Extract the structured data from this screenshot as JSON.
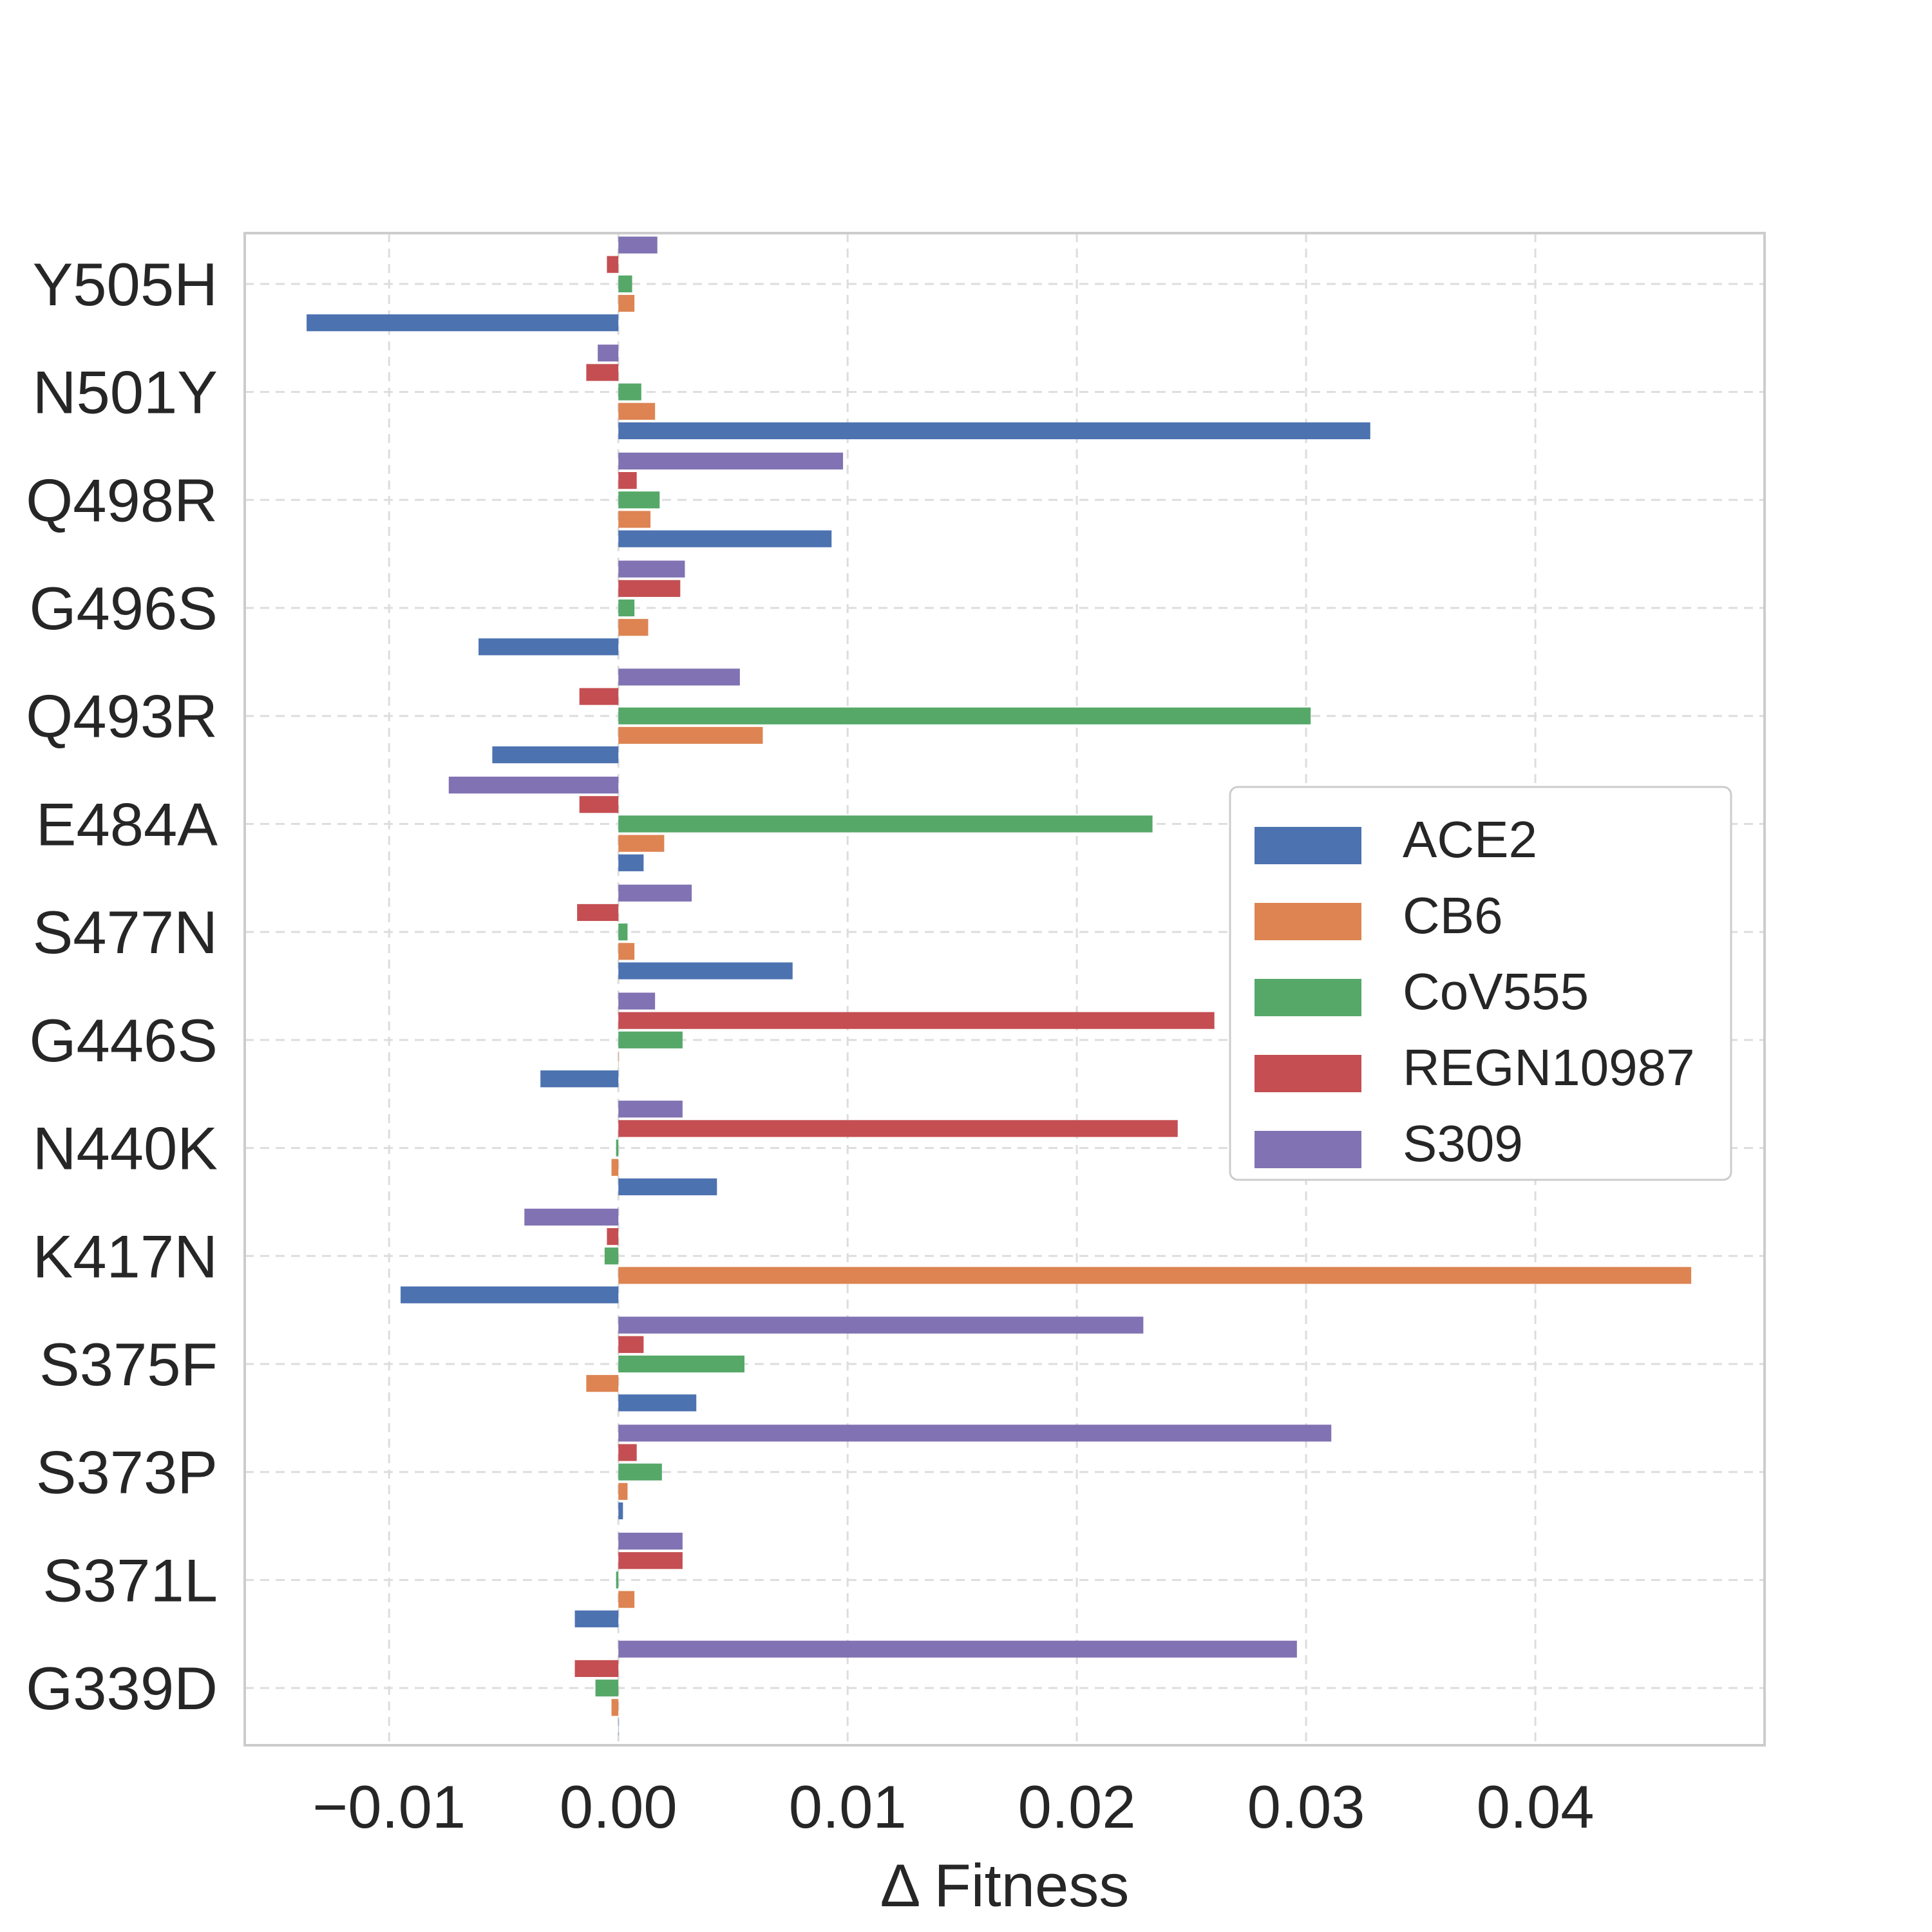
{
  "chart_data": {
    "type": "bar",
    "orientation": "horizontal",
    "title": "",
    "xlabel": "Δ Fitness",
    "ylabel": "",
    "xlim": [
      -0.0163,
      0.05
    ],
    "xticks": [
      -0.01,
      0.0,
      0.01,
      0.02,
      0.03,
      0.04
    ],
    "xtick_labels": [
      "−0.01",
      "0.00",
      "0.01",
      "0.02",
      "0.03",
      "0.04"
    ],
    "grid": true,
    "legend_position": "center-right",
    "categories": [
      "Y505H",
      "N501Y",
      "Q498R",
      "G496S",
      "Q493R",
      "E484A",
      "S477N",
      "G446S",
      "N440K",
      "K417N",
      "S375F",
      "S373P",
      "S371L",
      "G339D"
    ],
    "series": [
      {
        "name": "ACE2",
        "color": "#4c72b0",
        "values": [
          -0.0136,
          0.0328,
          0.0093,
          -0.0061,
          -0.0055,
          0.0011,
          0.0076,
          -0.0034,
          0.0043,
          -0.0095,
          0.0034,
          0.0002,
          -0.0019,
          0.0
        ]
      },
      {
        "name": "CB6",
        "color": "#dd8452",
        "values": [
          0.0007,
          0.0016,
          0.0014,
          0.0013,
          0.0063,
          0.002,
          0.0007,
          0.0,
          -0.0003,
          0.0468,
          -0.0014,
          0.0004,
          0.0007,
          -0.0003
        ]
      },
      {
        "name": "CoV555",
        "color": "#55a868",
        "values": [
          0.0006,
          0.001,
          0.0018,
          0.0007,
          0.0302,
          0.0233,
          0.0004,
          0.0028,
          -0.0001,
          -0.0006,
          0.0055,
          0.0019,
          -0.0001,
          -0.001
        ]
      },
      {
        "name": "REGN10987",
        "color": "#c44e52",
        "values": [
          -0.0005,
          -0.0014,
          0.0008,
          0.0027,
          -0.0017,
          -0.0017,
          -0.0018,
          0.026,
          0.0244,
          -0.0005,
          0.0011,
          0.0008,
          0.0028,
          -0.0019
        ]
      },
      {
        "name": "S309",
        "color": "#8172b3",
        "values": [
          0.0017,
          -0.0009,
          0.0098,
          0.0029,
          0.0053,
          -0.0074,
          0.0032,
          0.0016,
          0.0028,
          -0.0041,
          0.0229,
          0.0311,
          0.0028,
          0.0296
        ]
      }
    ]
  }
}
